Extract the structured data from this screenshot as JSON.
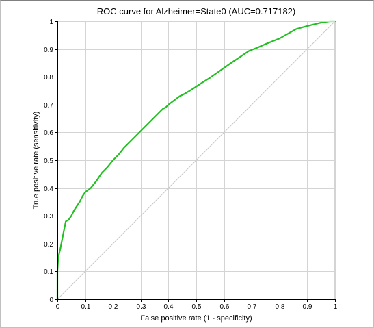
{
  "chart_data": {
    "type": "line",
    "title": "ROC curve for Alzheimer=State0 (AUC=0.717182)",
    "xlabel": "False positive rate (1 - specificity)",
    "ylabel": "True positive rate (sensitivity)",
    "xlim": [
      0,
      1
    ],
    "ylim": [
      0,
      1
    ],
    "grid": true,
    "x_ticks": [
      "0",
      "0.1",
      "0.2",
      "0.3",
      "0.4",
      "0.5",
      "0.6",
      "0.7",
      "0.8",
      "0.9",
      "1"
    ],
    "y_ticks": [
      "0",
      "0.1",
      "0.2",
      "0.3",
      "0.4",
      "0.5",
      "0.6",
      "0.7",
      "0.8",
      "0.9",
      "1"
    ],
    "reference_line": {
      "x": [
        0,
        1
      ],
      "y": [
        0,
        1
      ],
      "color": "#c8c8c8"
    },
    "series": [
      {
        "color": "#22c022",
        "x": [
          0,
          0,
          0.003,
          0.01,
          0.02,
          0.03,
          0.04,
          0.05,
          0.06,
          0.07,
          0.08,
          0.09,
          0.1,
          0.12,
          0.14,
          0.16,
          0.18,
          0.2,
          0.22,
          0.24,
          0.26,
          0.28,
          0.3,
          0.32,
          0.34,
          0.36,
          0.38,
          0.39,
          0.4,
          0.42,
          0.44,
          0.46,
          0.48,
          0.5,
          0.52,
          0.55,
          0.58,
          0.6,
          0.63,
          0.66,
          0.69,
          0.72,
          0.75,
          0.78,
          0.8,
          0.83,
          0.86,
          0.89,
          0.92,
          0.95,
          0.98,
          1
        ],
        "y": [
          0,
          0.1,
          0.15,
          0.18,
          0.23,
          0.28,
          0.285,
          0.3,
          0.32,
          0.335,
          0.35,
          0.37,
          0.385,
          0.4,
          0.425,
          0.455,
          0.475,
          0.5,
          0.52,
          0.545,
          0.565,
          0.585,
          0.605,
          0.625,
          0.645,
          0.665,
          0.685,
          0.69,
          0.7,
          0.715,
          0.73,
          0.74,
          0.752,
          0.765,
          0.778,
          0.797,
          0.818,
          0.832,
          0.853,
          0.873,
          0.893,
          0.905,
          0.918,
          0.93,
          0.938,
          0.955,
          0.972,
          0.98,
          0.988,
          0.995,
          1.0,
          1.0
        ]
      }
    ]
  }
}
